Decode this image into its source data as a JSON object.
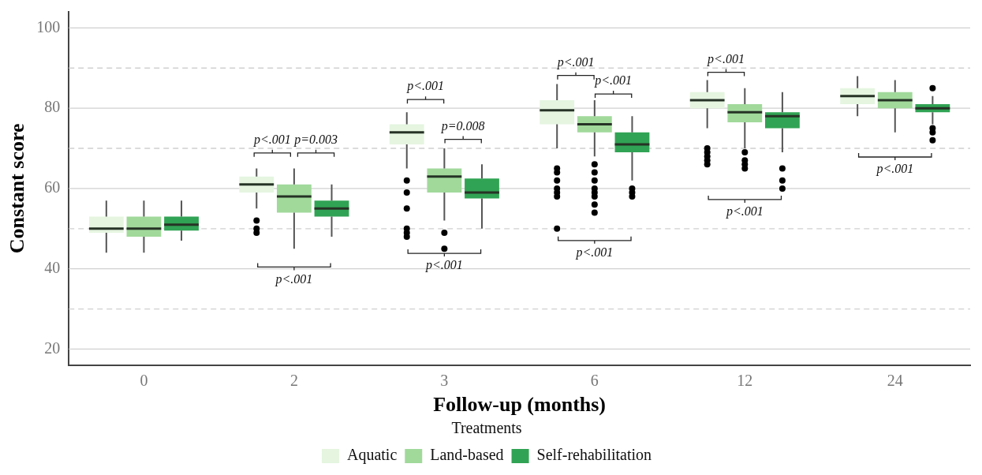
{
  "chart_data": {
    "type": "box",
    "xlabel": "Follow-up (months)",
    "ylabel": "Constant score",
    "legend_title": "Treatments",
    "categories": [
      "0",
      "2",
      "3",
      "6",
      "12",
      "24"
    ],
    "series": [
      {
        "name": "Aquatic",
        "color": "#e5f5e0",
        "boxes": [
          {
            "low": 44,
            "q1": 49,
            "median": 50,
            "q3": 53,
            "high": 57
          },
          {
            "low": 55,
            "q1": 59,
            "median": 61,
            "q3": 63,
            "high": 65,
            "outliers": [
              52,
              50,
              49
            ]
          },
          {
            "low": 65,
            "q1": 71,
            "median": 74,
            "q3": 76,
            "high": 79,
            "outliers": [
              62,
              59,
              55,
              50,
              49,
              48
            ]
          },
          {
            "low": 70,
            "q1": 76,
            "median": 79.5,
            "q3": 82,
            "high": 86,
            "outliers": [
              65,
              64,
              62,
              60,
              59,
              58,
              50
            ]
          },
          {
            "low": 75,
            "q1": 80,
            "median": 82,
            "q3": 84,
            "high": 87,
            "outliers": [
              70,
              69,
              68,
              67,
              66
            ]
          },
          {
            "low": 78,
            "q1": 81,
            "median": 83,
            "q3": 85,
            "high": 88
          }
        ]
      },
      {
        "name": "Land-based",
        "color": "#a1d99b",
        "boxes": [
          {
            "low": 44,
            "q1": 48,
            "median": 50,
            "q3": 53,
            "high": 57
          },
          {
            "low": 45,
            "q1": 54,
            "median": 58,
            "q3": 61,
            "high": 65
          },
          {
            "low": 52,
            "q1": 59,
            "median": 63,
            "q3": 65,
            "high": 70,
            "outliers": [
              49,
              45
            ]
          },
          {
            "low": 68,
            "q1": 74,
            "median": 76,
            "q3": 78,
            "high": 82,
            "outliers": [
              66,
              64,
              62,
              60,
              59,
              58,
              56,
              54
            ]
          },
          {
            "low": 70,
            "q1": 76.5,
            "median": 79,
            "q3": 81,
            "high": 85,
            "outliers": [
              69,
              67,
              66,
              65
            ]
          },
          {
            "low": 74,
            "q1": 80,
            "median": 82,
            "q3": 84,
            "high": 87
          }
        ]
      },
      {
        "name": "Self-rehabilitation",
        "color": "#31a354",
        "boxes": [
          {
            "low": 47,
            "q1": 49.5,
            "median": 51,
            "q3": 53,
            "high": 57
          },
          {
            "low": 48,
            "q1": 53,
            "median": 55,
            "q3": 57,
            "high": 61
          },
          {
            "low": 50,
            "q1": 57.5,
            "median": 59,
            "q3": 62.5,
            "high": 66
          },
          {
            "low": 62,
            "q1": 69,
            "median": 71,
            "q3": 74,
            "high": 78,
            "outliers": [
              60,
              59,
              58
            ]
          },
          {
            "low": 69,
            "q1": 75,
            "median": 78,
            "q3": 79,
            "high": 84,
            "outliers": [
              65,
              62,
              60
            ]
          },
          {
            "low": 76,
            "q1": 79,
            "median": 80,
            "q3": 81,
            "high": 83,
            "outliers": [
              85,
              75,
              74,
              72
            ]
          }
        ]
      }
    ],
    "ylim": [
      16,
      104
    ],
    "yticks": [
      20,
      {
        "value": 30,
        "label": null
      },
      40,
      {
        "value": 50,
        "label": null
      },
      60,
      {
        "value": 70,
        "label": null
      },
      80,
      {
        "value": 90,
        "label": null
      },
      100
    ],
    "grid": "y",
    "legend": "bottom",
    "annotations": [
      "p<.001",
      "p=0.003",
      "p<.001",
      "p<.001",
      "p=0.008",
      "p<.001",
      "p<.001",
      "p<.001",
      "p<.001",
      "p<.001",
      "p<.001",
      "p<.001"
    ]
  }
}
